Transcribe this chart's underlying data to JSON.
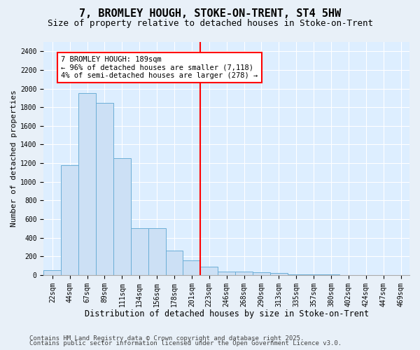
{
  "title1": "7, BROMLEY HOUGH, STOKE-ON-TRENT, ST4 5HW",
  "title2": "Size of property relative to detached houses in Stoke-on-Trent",
  "xlabel": "Distribution of detached houses by size in Stoke-on-Trent",
  "ylabel": "Number of detached properties",
  "bin_labels": [
    "22sqm",
    "44sqm",
    "67sqm",
    "89sqm",
    "111sqm",
    "134sqm",
    "156sqm",
    "178sqm",
    "201sqm",
    "223sqm",
    "246sqm",
    "268sqm",
    "290sqm",
    "313sqm",
    "335sqm",
    "357sqm",
    "380sqm",
    "402sqm",
    "424sqm",
    "447sqm",
    "469sqm"
  ],
  "bar_values": [
    50,
    1175,
    1950,
    1850,
    1250,
    500,
    500,
    260,
    155,
    90,
    40,
    35,
    30,
    20,
    10,
    5,
    3,
    2,
    1,
    1,
    1
  ],
  "bar_color": "#cce0f5",
  "bar_edge_color": "#6baed6",
  "vline_x": 8.5,
  "vline_color": "red",
  "annotation_line1": "7 BROMLEY HOUGH: 189sqm",
  "annotation_line2": "← 96% of detached houses are smaller (7,118)",
  "annotation_line3": "4% of semi-detached houses are larger (278) →",
  "annotation_fontsize": 7.5,
  "ylim": [
    0,
    2500
  ],
  "yticks": [
    0,
    200,
    400,
    600,
    800,
    1000,
    1200,
    1400,
    1600,
    1800,
    2000,
    2200,
    2400
  ],
  "footer1": "Contains HM Land Registry data © Crown copyright and database right 2025.",
  "footer2": "Contains public sector information licensed under the Open Government Licence v3.0.",
  "bg_color": "#e8f0f8",
  "plot_bg_color": "#ddeeff",
  "title1_fontsize": 11,
  "title2_fontsize": 9,
  "xlabel_fontsize": 8.5,
  "ylabel_fontsize": 8,
  "tick_fontsize": 7,
  "footer_fontsize": 6.5
}
